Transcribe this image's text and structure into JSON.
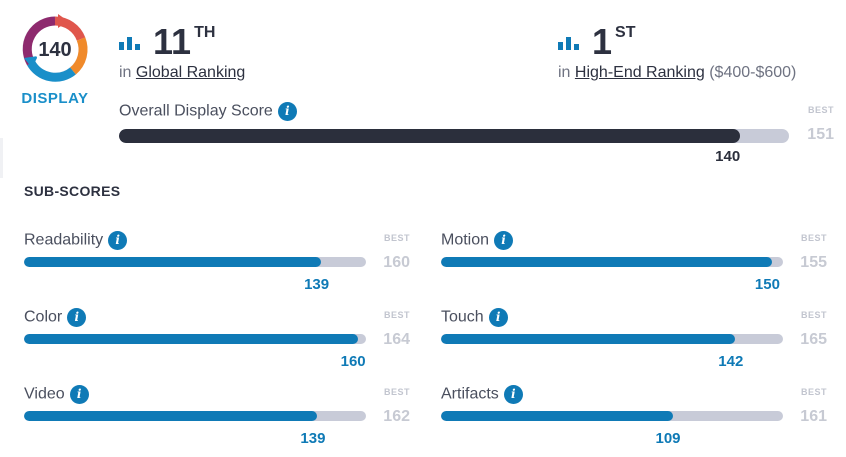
{
  "badge": {
    "score": "140",
    "label": "DISPLAY"
  },
  "colors": {
    "accent": "#0f7ab6",
    "dark": "#2b2f3c",
    "track": "#c8cbd8",
    "best": "#c7cad3"
  },
  "global": {
    "rank": "11",
    "suffix": "TH",
    "prefix": "in ",
    "link": "Global Ranking"
  },
  "highend": {
    "rank": "1",
    "suffix": "ST",
    "prefix": "in ",
    "link": "High-End Ranking",
    "extra": " ($400-$600)"
  },
  "overall": {
    "label": "Overall Display Score",
    "best_label": "BEST",
    "best": "151",
    "score": "140",
    "value": 140,
    "max": 151
  },
  "subs_title": "SUB-SCORES",
  "subs": [
    {
      "label": "Readability",
      "best_label": "BEST",
      "best": "160",
      "score": "139",
      "value": 139,
      "max": 160
    },
    {
      "label": "Motion",
      "best_label": "BEST",
      "best": "155",
      "score": "150",
      "value": 150,
      "max": 155
    },
    {
      "label": "Color",
      "best_label": "BEST",
      "best": "164",
      "score": "160",
      "value": 160,
      "max": 164
    },
    {
      "label": "Touch",
      "best_label": "BEST",
      "best": "165",
      "score": "142",
      "value": 142,
      "max": 165
    },
    {
      "label": "Video",
      "best_label": "BEST",
      "best": "162",
      "score": "139",
      "value": 139,
      "max": 162
    },
    {
      "label": "Artifacts",
      "best_label": "BEST",
      "best": "161",
      "score": "109",
      "value": 109,
      "max": 161
    }
  ],
  "icons": {
    "info": "info-icon",
    "rank": "bar-chart-icon",
    "badge": "score-ring-icon"
  }
}
